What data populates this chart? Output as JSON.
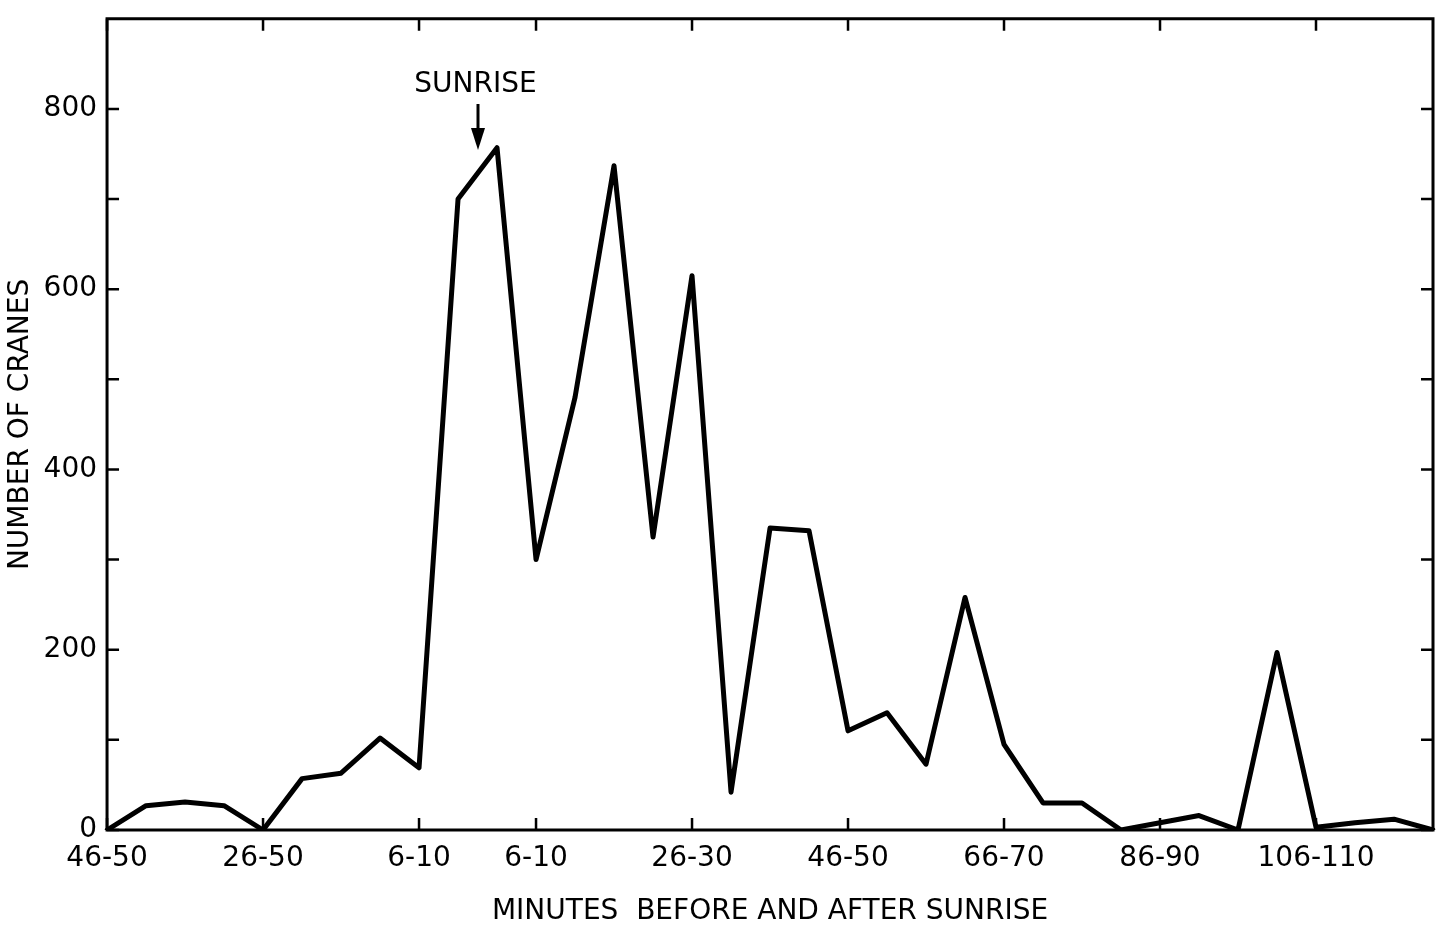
{
  "chart_data": {
    "type": "line",
    "xlabel": "MINUTES  BEFORE AND AFTER SUNRISE",
    "ylabel": "NUMBER OF CRANES",
    "categories": [
      "46-50",
      null,
      null,
      null,
      "26-50",
      null,
      null,
      null,
      "6-10",
      null,
      null,
      "6-10",
      null,
      null,
      null,
      "26-30",
      null,
      null,
      null,
      "46-50",
      null,
      null,
      null,
      "66-70",
      null,
      null,
      null,
      "86-90",
      null,
      null,
      null,
      "106-110",
      null,
      null,
      null
    ],
    "series": [
      {
        "color": "#000000",
        "values": [
          0,
          27,
          31,
          27,
          0,
          57,
          63,
          102,
          69,
          700,
          757,
          300,
          480,
          737,
          325,
          615,
          42,
          335,
          332,
          110,
          130,
          73,
          258,
          95,
          30,
          30,
          0,
          8,
          16,
          0,
          197,
          3,
          8,
          12,
          0
        ]
      }
    ],
    "ylim": [
      0,
      900
    ],
    "yticks": [
      0,
      {
        "value": 100,
        "label": null
      },
      200,
      {
        "value": 300,
        "label": null
      },
      400,
      {
        "value": 500,
        "label": null
      },
      600,
      {
        "value": 700,
        "label": null
      },
      800
    ],
    "annotations": [
      "SUNRISE"
    ]
  }
}
